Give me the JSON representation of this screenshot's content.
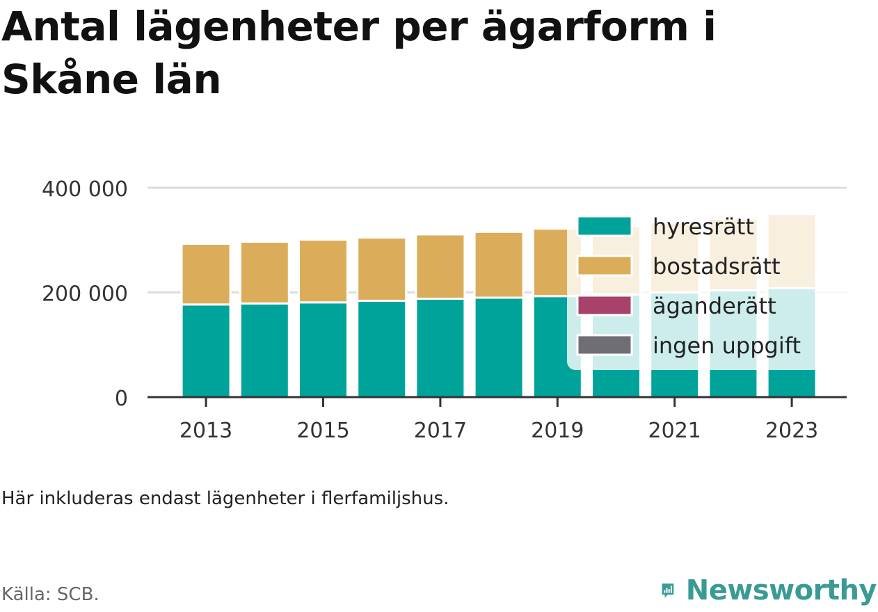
{
  "title": "Antal lägenheter per ägarform i Skåne län",
  "note": "Här inkluderas endast lägenheter i flerfamiljshus.",
  "source": "Källa: SCB.",
  "brand": {
    "name": "Newsworthy",
    "color": "#3a9a94",
    "icon": "newsworthy-chart-bubble-icon"
  },
  "colors": {
    "hyresratt": "#00a39a",
    "bostadsratt": "#dbad5a",
    "aganderatt": "#a8426a",
    "ingen_uppgift": "#6e6e74",
    "grid": "#dddddd",
    "axis": "#333333"
  },
  "chart_data": {
    "type": "bar",
    "stacked": true,
    "title": "Antal lägenheter per ägarform i Skåne län",
    "xlabel": "",
    "ylabel": "",
    "categories": [
      "2013",
      "2014",
      "2015",
      "2016",
      "2017",
      "2018",
      "2019",
      "2020",
      "2021",
      "2022",
      "2023"
    ],
    "x_tick_labels": [
      "2013",
      "2015",
      "2017",
      "2019",
      "2021",
      "2023"
    ],
    "y_ticks": [
      0,
      200000,
      400000
    ],
    "y_tick_labels": [
      "0",
      "200 000",
      "400 000"
    ],
    "ylim": [
      0,
      400000
    ],
    "grid": true,
    "legend_position": "top-right",
    "series": [
      {
        "name": "hyresrätt",
        "color": "#00a39a",
        "values": [
          177000,
          179000,
          181000,
          184000,
          188000,
          190000,
          193000,
          196000,
          200000,
          204000,
          208000
        ]
      },
      {
        "name": "bostadsrätt",
        "color": "#dbad5a",
        "values": [
          116000,
          118000,
          120000,
          121000,
          123000,
          126000,
          129000,
          131000,
          134000,
          137000,
          142000
        ]
      },
      {
        "name": "äganderätt",
        "color": "#a8426a",
        "values": [
          300,
          300,
          300,
          300,
          300,
          300,
          300,
          300,
          300,
          300,
          300
        ]
      },
      {
        "name": "ingen uppgift",
        "color": "#6e6e74",
        "values": [
          0,
          0,
          0,
          0,
          0,
          0,
          0,
          0,
          0,
          0,
          0
        ]
      }
    ]
  }
}
